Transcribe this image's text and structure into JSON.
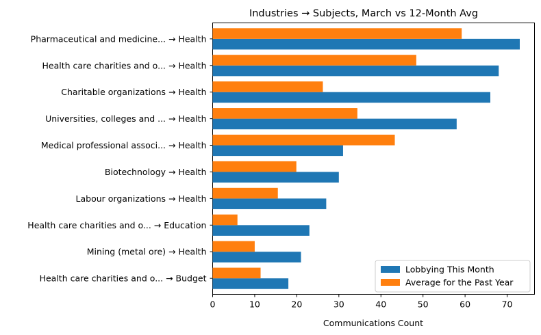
{
  "chart_data": {
    "type": "bar",
    "orientation": "horizontal",
    "title": "Industries → Subjects, March vs 12-Month Avg",
    "xlabel": "Communications Count",
    "ylabel": "",
    "xlim": [
      0,
      76.5
    ],
    "xticks": [
      "0",
      "10",
      "20",
      "30",
      "40",
      "50",
      "60",
      "70"
    ],
    "grid": false,
    "legend_position": "lower-right",
    "categories": [
      "Pharmaceutical and medicine... → Health",
      "Health care charities and o... → Health",
      "Charitable organizations → Health",
      "Universities, colleges and ... → Health",
      "Medical professional associ... → Health",
      "Biotechnology → Health",
      "Labour organizations → Health",
      "Health care charities and o... → Education",
      "Mining (metal ore) → Health",
      "Health care charities and o... → Budget"
    ],
    "series": [
      {
        "name": "Lobbying This Month",
        "color": "#1f77b4",
        "values": [
          73,
          68,
          66,
          58,
          31,
          30,
          27,
          23,
          21,
          18
        ]
      },
      {
        "name": "Average for the Past Year",
        "color": "#ff7f0e",
        "values": [
          59.2,
          48.4,
          26.2,
          34.4,
          43.3,
          19.9,
          15.5,
          5.9,
          10,
          11.4
        ]
      }
    ]
  }
}
